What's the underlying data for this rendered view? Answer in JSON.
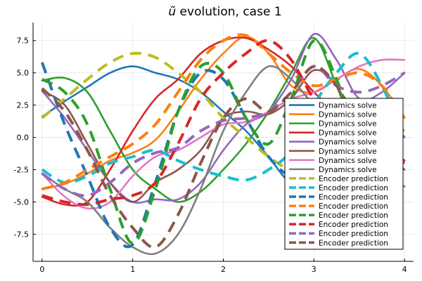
{
  "chart_data": {
    "type": "line",
    "title": "ũ evolution, case 1",
    "title_italic_symbol": "ũ",
    "title_rest": " evolution, case 1",
    "xlabel": "",
    "ylabel": "",
    "xlim": [
      -0.1,
      4.1
    ],
    "ylim": [
      -9.6,
      8.9
    ],
    "xticks": [
      0,
      1,
      2,
      3,
      4
    ],
    "xtick_labels": [
      "0",
      "1",
      "2",
      "3",
      "4"
    ],
    "yticks": [
      -7.5,
      -5.0,
      -2.5,
      0.0,
      2.5,
      5.0,
      7.5
    ],
    "ytick_labels": [
      "-7.5",
      "-5.0",
      "-2.5",
      "0.0",
      "2.5",
      "5.0",
      "7.5"
    ],
    "grid": true,
    "legend_position": "bottom-right",
    "x": [
      0,
      0.25,
      0.5,
      0.75,
      1.0,
      1.25,
      1.5,
      1.75,
      2.0,
      2.25,
      2.5,
      2.75,
      3.0,
      3.25,
      3.5,
      3.75,
      4.0
    ],
    "series": [
      {
        "name": "Dynamics solve",
        "color": "#1f77b4",
        "dash": false,
        "values": [
          1.6,
          2.8,
          3.9,
          5.0,
          5.5,
          5.0,
          4.5,
          3.5,
          2.0,
          0.5,
          -1.5,
          -3.5,
          -2.8,
          -1.5,
          0.5,
          2.0,
          0.0
        ]
      },
      {
        "name": "Dynamics solve",
        "color": "#ff7f0e",
        "dash": false,
        "values": [
          -4.0,
          -3.6,
          -2.8,
          -1.8,
          -1.2,
          -0.2,
          2.0,
          4.5,
          6.5,
          7.8,
          6.5,
          4.0,
          3.5,
          4.5,
          5.3,
          4.0,
          1.5
        ]
      },
      {
        "name": "Dynamics solve",
        "color": "#2ca02c",
        "dash": false,
        "values": [
          4.4,
          4.6,
          3.5,
          0.5,
          -2.5,
          -4.0,
          -5.0,
          -4.2,
          -2.5,
          -0.5,
          2.0,
          5.0,
          7.7,
          4.0,
          -0.5,
          -3.0,
          -3.8
        ]
      },
      {
        "name": "Dynamics solve",
        "color": "#d62728",
        "dash": false,
        "values": [
          -4.6,
          -5.2,
          -5.0,
          -2.5,
          0.5,
          3.0,
          4.5,
          6.5,
          7.5,
          7.7,
          6.8,
          5.5,
          3.5,
          2.0,
          0.5,
          -0.5,
          -1.8
        ]
      },
      {
        "name": "Dynamics solve",
        "color": "#9467bd",
        "dash": false,
        "values": [
          3.6,
          1.5,
          -1.0,
          -3.5,
          -5.0,
          -4.8,
          -4.8,
          -3.5,
          -1.0,
          1.0,
          2.0,
          4.5,
          8.0,
          6.0,
          3.0,
          3.5,
          5.0
        ]
      },
      {
        "name": "Dynamics solve",
        "color": "#8c564b",
        "dash": false,
        "values": [
          3.6,
          2.5,
          -0.5,
          -3.5,
          -5.0,
          -3.5,
          -2.5,
          -1.0,
          1.5,
          2.0,
          1.8,
          3.0,
          5.2,
          4.0,
          0.5,
          -1.0,
          -2.5
        ]
      },
      {
        "name": "Dynamics solve",
        "color": "#e377c2",
        "dash": false,
        "values": [
          -2.8,
          -4.6,
          -5.5,
          -5.0,
          -3.0,
          -1.5,
          -1.0,
          0.0,
          1.0,
          1.2,
          2.0,
          3.0,
          3.5,
          4.5,
          5.5,
          6.0,
          6.0
        ]
      },
      {
        "name": "Dynamics solve",
        "color": "#7f7f7f",
        "dash": false,
        "values": [
          -2.8,
          -4.0,
          -5.0,
          -7.0,
          -8.5,
          -9.0,
          -7.5,
          -4.0,
          0.5,
          3.5,
          5.5,
          4.5,
          2.5,
          1.0,
          0.5,
          0.3,
          0.0
        ]
      },
      {
        "name": "Encoder prediction",
        "color": "#bcbd22",
        "dash": true,
        "values": [
          1.5,
          3.0,
          4.5,
          5.8,
          6.5,
          6.2,
          5.0,
          3.5,
          1.5,
          0.0,
          -1.5,
          -2.5,
          -2.2,
          -1.0,
          0.5,
          1.5,
          0.5
        ]
      },
      {
        "name": "Encoder prediction",
        "color": "#17becf",
        "dash": true,
        "values": [
          -2.5,
          -3.5,
          -3.0,
          -2.0,
          -1.5,
          -1.0,
          -1.8,
          -2.5,
          -3.0,
          -3.3,
          -2.5,
          -1.0,
          2.5,
          5.0,
          6.5,
          4.0,
          0.0
        ]
      },
      {
        "name": "Encoder prediction",
        "color": "#1f77b4",
        "dash": true,
        "values": [
          5.8,
          1.0,
          -3.0,
          -7.0,
          -8.3,
          -3.5,
          2.0,
          5.0,
          4.5,
          1.5,
          -1.5,
          -3.0,
          -2.5,
          -1.0,
          1.0,
          2.0,
          0.0
        ]
      },
      {
        "name": "Encoder prediction",
        "color": "#ff7f0e",
        "dash": true,
        "values": [
          -4.0,
          -3.5,
          -2.5,
          -1.5,
          -0.5,
          1.0,
          3.5,
          6.0,
          7.5,
          7.9,
          6.5,
          5.0,
          4.0,
          4.5,
          5.0,
          4.0,
          1.5
        ]
      },
      {
        "name": "Encoder prediction",
        "color": "#2ca02c",
        "dash": true,
        "values": [
          4.5,
          3.5,
          1.0,
          -4.0,
          -8.2,
          -4.0,
          2.0,
          5.5,
          5.0,
          1.5,
          -0.5,
          3.0,
          7.5,
          4.5,
          -0.5,
          -3.5,
          -4.5
        ]
      },
      {
        "name": "Encoder prediction",
        "color": "#d62728",
        "dash": true,
        "values": [
          -4.5,
          -5.0,
          -5.2,
          -4.8,
          -4.5,
          -3.5,
          -0.5,
          3.0,
          5.0,
          6.5,
          7.5,
          6.0,
          3.0,
          1.5,
          -0.5,
          -1.0,
          -1.8
        ]
      },
      {
        "name": "Encoder prediction",
        "color": "#9467bd",
        "dash": true,
        "values": [
          -2.8,
          -4.0,
          -4.5,
          -3.5,
          -2.0,
          -1.2,
          -0.8,
          0.5,
          1.3,
          1.5,
          2.0,
          3.5,
          5.5,
          4.0,
          3.5,
          4.0,
          5.0
        ]
      },
      {
        "name": "Encoder prediction",
        "color": "#8c564b",
        "dash": true,
        "values": [
          3.8,
          2.0,
          -1.0,
          -4.5,
          -7.0,
          -8.5,
          -6.0,
          -2.0,
          1.5,
          3.0,
          2.0,
          3.5,
          5.5,
          4.0,
          1.0,
          -1.0,
          -2.0
        ]
      }
    ]
  }
}
